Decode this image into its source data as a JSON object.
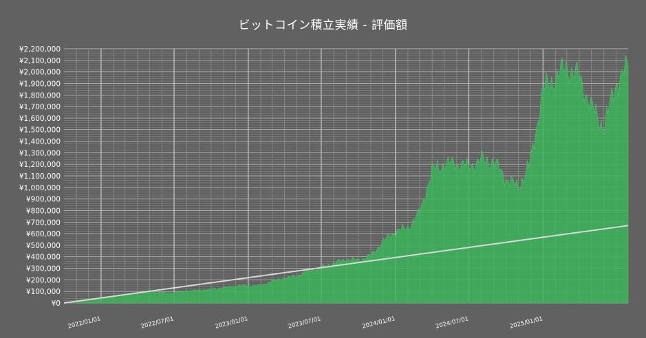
{
  "chart_data": {
    "type": "area",
    "title": "ビットコイン積立実績 - 評価額",
    "xlabel": "",
    "ylabel": "",
    "ylim": [
      0,
      2200000
    ],
    "y_ticks": [
      0,
      100000,
      200000,
      300000,
      400000,
      500000,
      600000,
      700000,
      800000,
      900000,
      1000000,
      1100000,
      1200000,
      1300000,
      1400000,
      1500000,
      1600000,
      1700000,
      1800000,
      1900000,
      2000000,
      2100000,
      2200000
    ],
    "y_tick_labels": [
      "¥0",
      "¥100,000",
      "¥200,000",
      "¥300,000",
      "¥400,000",
      "¥500,000",
      "¥600,000",
      "¥700,000",
      "¥800,000",
      "¥900,000",
      "¥1,000,000",
      "¥1,100,000",
      "¥1,200,000",
      "¥1,300,000",
      "¥1,400,000",
      "¥1,500,000",
      "¥1,600,000",
      "¥1,700,000",
      "¥1,800,000",
      "¥1,900,000",
      "¥2,000,000",
      "¥2,100,000",
      "¥2,200,000"
    ],
    "x_range": [
      "2021-10-01",
      "2025-07-31"
    ],
    "x_ticks": [
      "2022-01-01",
      "2022-07-01",
      "2023-01-01",
      "2023-07-01",
      "2024-01-01",
      "2024-07-01",
      "2025-01-01"
    ],
    "x_tick_labels": [
      "2022/01/01",
      "2022/07/01",
      "2023/01/01",
      "2023/07/01",
      "2024/01/01",
      "2024/07/01",
      "2025/01/01"
    ],
    "grid": true,
    "series": [
      {
        "role": "valuation",
        "color": "#3cb05a",
        "points": [
          [
            "2021-10-01",
            0
          ],
          [
            "2021-11-01",
            12000
          ],
          [
            "2021-12-01",
            25000
          ],
          [
            "2022-01-01",
            38000
          ],
          [
            "2022-02-01",
            52000
          ],
          [
            "2022-03-01",
            68000
          ],
          [
            "2022-04-01",
            82000
          ],
          [
            "2022-05-01",
            95000
          ],
          [
            "2022-06-01",
            90000
          ],
          [
            "2022-07-01",
            88000
          ],
          [
            "2022-08-01",
            103000
          ],
          [
            "2022-09-01",
            110000
          ],
          [
            "2022-10-01",
            118000
          ],
          [
            "2022-11-01",
            133000
          ],
          [
            "2022-12-01",
            148000
          ],
          [
            "2023-01-01",
            150000
          ],
          [
            "2023-02-01",
            150000
          ],
          [
            "2023-03-01",
            190000
          ],
          [
            "2023-04-01",
            215000
          ],
          [
            "2023-05-01",
            235000
          ],
          [
            "2023-06-01",
            280000
          ],
          [
            "2023-07-01",
            305000
          ],
          [
            "2023-08-01",
            345000
          ],
          [
            "2023-09-01",
            375000
          ],
          [
            "2023-10-01",
            370000
          ],
          [
            "2023-11-01",
            410000
          ],
          [
            "2023-12-01",
            530000
          ],
          [
            "2024-01-01",
            620000
          ],
          [
            "2024-02-01",
            650000
          ],
          [
            "2024-03-01",
            780000
          ],
          [
            "2024-04-01",
            1150000
          ],
          [
            "2024-05-01",
            1200000
          ],
          [
            "2024-06-01",
            1210000
          ],
          [
            "2024-07-01",
            1180000
          ],
          [
            "2024-08-01",
            1240000
          ],
          [
            "2024-09-01",
            1220000
          ],
          [
            "2024-10-01",
            1080000
          ],
          [
            "2024-11-01",
            1000000
          ],
          [
            "2024-12-01",
            1220000
          ],
          [
            "2025-01-01",
            1850000
          ],
          [
            "2025-02-01",
            1950000
          ],
          [
            "2025-03-01",
            2050000
          ],
          [
            "2025-04-01",
            1950000
          ],
          [
            "2025-05-01",
            1700000
          ],
          [
            "2025-06-01",
            1520000
          ],
          [
            "2025-07-01",
            1900000
          ],
          [
            "2025-07-31",
            2050000
          ]
        ]
      },
      {
        "role": "cumulative-investment",
        "color": "#d8d8d8",
        "points": [
          [
            "2021-10-01",
            0
          ],
          [
            "2025-07-31",
            670000
          ]
        ]
      }
    ]
  }
}
